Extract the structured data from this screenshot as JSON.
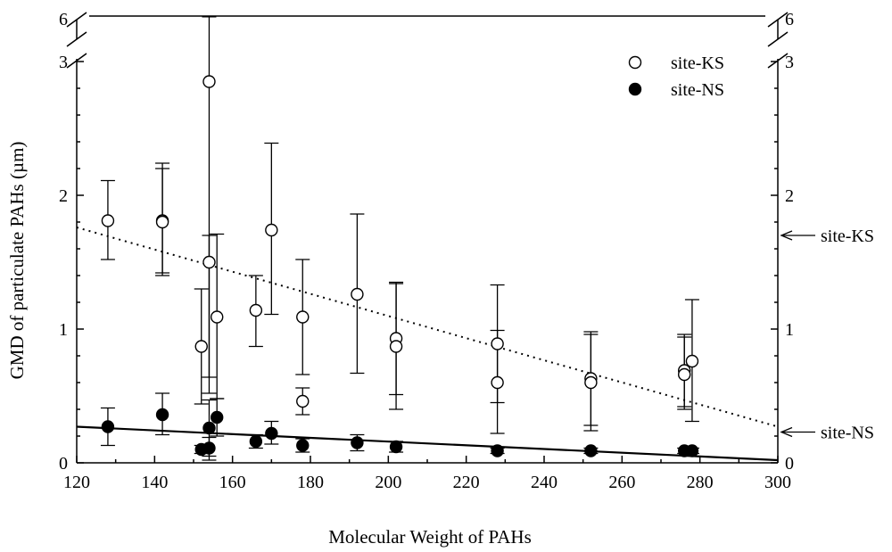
{
  "chart_data": {
    "type": "scatter",
    "title": "",
    "xlabel": "Molecular Weight of PAHs",
    "ylabel": "GMD of particulate PAHs (µm)",
    "xlim": [
      120,
      300
    ],
    "ylim": [
      0,
      3
    ],
    "ylim_broken_top": 6,
    "x_ticks": [
      120,
      140,
      160,
      180,
      200,
      220,
      240,
      260,
      280,
      300
    ],
    "y_ticks": [
      0,
      1,
      2,
      3
    ],
    "y_ticks_right": [
      0,
      1,
      2,
      3
    ],
    "y_break_label": "6",
    "legend": {
      "position": "top-right"
    },
    "series": [
      {
        "name": "site-KS",
        "marker": "open-circle",
        "points": [
          {
            "x": 128,
            "y": 1.81,
            "lo": 1.52,
            "hi": 2.11
          },
          {
            "x": 142,
            "y": 1.81,
            "lo": 1.4,
            "hi": 2.24
          },
          {
            "x": 142,
            "y": 1.8,
            "lo": 1.42,
            "hi": 2.2
          },
          {
            "x": 152,
            "y": 0.87,
            "lo": 0.44,
            "hi": 1.3
          },
          {
            "x": 154,
            "y": 2.85,
            "lo": 0.52,
            "hi": 5.9
          },
          {
            "x": 154,
            "y": 1.5,
            "lo": 0.64,
            "hi": 1.7
          },
          {
            "x": 156,
            "y": 1.09,
            "lo": 0.48,
            "hi": 1.71
          },
          {
            "x": 166,
            "y": 1.14,
            "lo": 0.87,
            "hi": 1.4
          },
          {
            "x": 170,
            "y": 1.74,
            "lo": 1.11,
            "hi": 2.39
          },
          {
            "x": 178,
            "y": 1.09,
            "lo": 0.66,
            "hi": 1.52
          },
          {
            "x": 178,
            "y": 0.46,
            "lo": 0.36,
            "hi": 0.56
          },
          {
            "x": 192,
            "y": 1.26,
            "lo": 0.67,
            "hi": 1.86
          },
          {
            "x": 202,
            "y": 0.93,
            "lo": 0.51,
            "hi": 1.35
          },
          {
            "x": 202,
            "y": 0.87,
            "lo": 0.4,
            "hi": 1.34
          },
          {
            "x": 228,
            "y": 0.89,
            "lo": 0.45,
            "hi": 1.33
          },
          {
            "x": 228,
            "y": 0.6,
            "lo": 0.22,
            "hi": 0.99
          },
          {
            "x": 252,
            "y": 0.63,
            "lo": 0.28,
            "hi": 0.98
          },
          {
            "x": 252,
            "y": 0.6,
            "lo": 0.24,
            "hi": 0.96
          },
          {
            "x": 276,
            "y": 0.69,
            "lo": 0.42,
            "hi": 0.96
          },
          {
            "x": 276,
            "y": 0.66,
            "lo": 0.4,
            "hi": 0.94
          },
          {
            "x": 278,
            "y": 0.76,
            "lo": 0.31,
            "hi": 1.22
          }
        ]
      },
      {
        "name": "site-NS",
        "marker": "filled-circle",
        "points": [
          {
            "x": 128,
            "y": 0.27,
            "lo": 0.13,
            "hi": 0.41
          },
          {
            "x": 142,
            "y": 0.36,
            "lo": 0.21,
            "hi": 0.52
          },
          {
            "x": 152,
            "y": 0.1,
            "lo": 0.07,
            "hi": 0.13
          },
          {
            "x": 154,
            "y": 0.11,
            "lo": 0.02,
            "hi": 0.19
          },
          {
            "x": 154,
            "y": 0.26,
            "lo": 0.05,
            "hi": 0.47
          },
          {
            "x": 156,
            "y": 0.34,
            "lo": 0.2,
            "hi": 0.48
          },
          {
            "x": 166,
            "y": 0.16,
            "lo": 0.11,
            "hi": 0.21
          },
          {
            "x": 170,
            "y": 0.22,
            "lo": 0.14,
            "hi": 0.31
          },
          {
            "x": 178,
            "y": 0.13,
            "lo": 0.08,
            "hi": 0.18
          },
          {
            "x": 192,
            "y": 0.15,
            "lo": 0.09,
            "hi": 0.21
          },
          {
            "x": 202,
            "y": 0.12,
            "lo": 0.08,
            "hi": 0.16
          },
          {
            "x": 228,
            "y": 0.09,
            "lo": 0.07,
            "hi": 0.11
          },
          {
            "x": 252,
            "y": 0.09,
            "lo": 0.07,
            "hi": 0.11
          },
          {
            "x": 276,
            "y": 0.09,
            "lo": 0.07,
            "hi": 0.11
          },
          {
            "x": 278,
            "y": 0.09,
            "lo": 0.07,
            "hi": 0.11
          }
        ]
      }
    ],
    "trend_lines": [
      {
        "series": "site-KS",
        "style": "dotted",
        "x": [
          120,
          300
        ],
        "y": [
          1.76,
          0.27
        ],
        "label": "site-KS",
        "label_y": 1.7
      },
      {
        "series": "site-NS",
        "style": "solid",
        "x": [
          120,
          300
        ],
        "y": [
          0.27,
          0.02
        ],
        "label": "site-NS",
        "label_y": 0.23
      }
    ]
  }
}
